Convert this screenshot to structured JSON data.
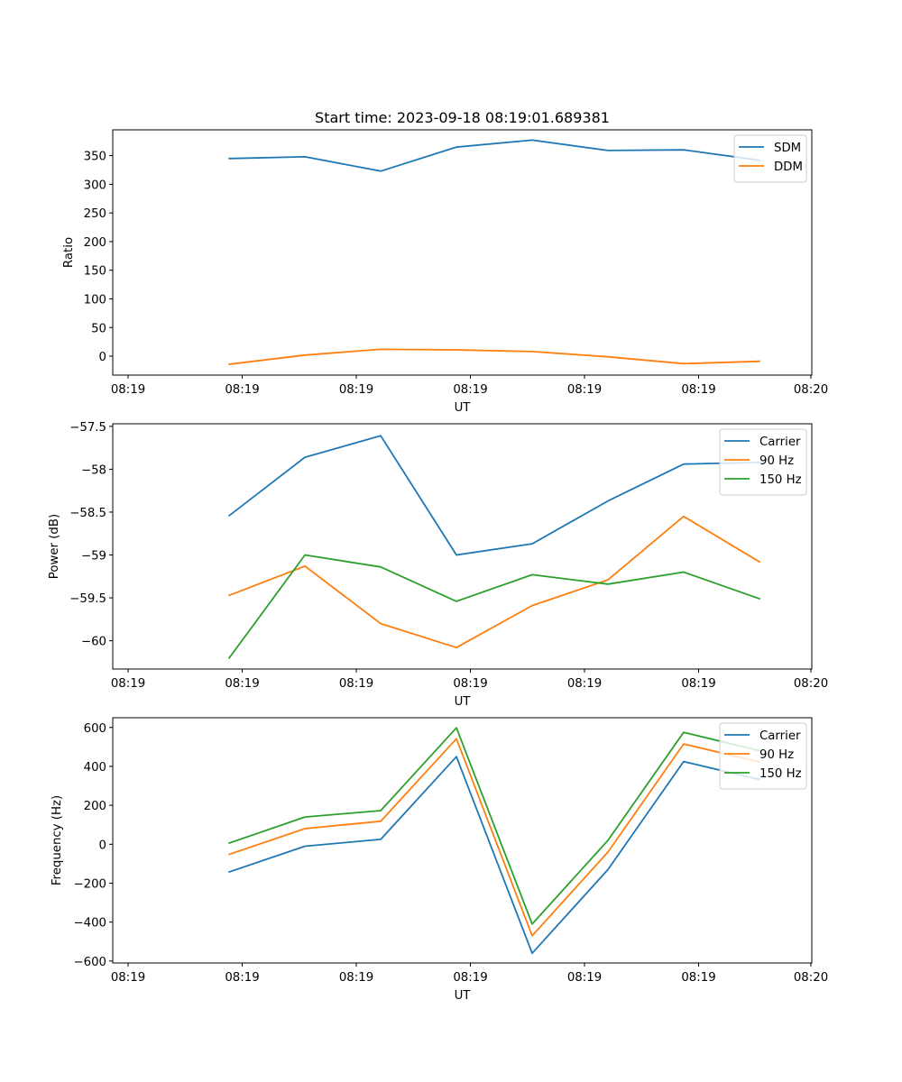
{
  "chart_data": [
    {
      "type": "line",
      "title": "Start time: 2023-09-18 08:19:01.689381",
      "xlabel": "UT",
      "ylabel": "Ratio",
      "xtick_labels": [
        "08:19",
        "08:19",
        "08:19",
        "08:19",
        "08:19",
        "08:19",
        "08:20"
      ],
      "ylim": [
        -33,
        395
      ],
      "yticks": [
        0,
        50,
        100,
        150,
        200,
        250,
        300,
        350
      ],
      "legend_position": "top-right",
      "x": [
        0.5,
        1.15,
        1.8,
        2.45,
        3.1,
        3.75,
        4.4,
        5.05
      ],
      "xlim": [
        -0.5,
        5.5
      ],
      "series": [
        {
          "name": "SDM",
          "color": "#1f77b4",
          "values": [
            345,
            348,
            323,
            365,
            377,
            359,
            360,
            342
          ]
        },
        {
          "name": "DDM",
          "color": "#ff7f0e",
          "values": [
            -14,
            2,
            12,
            11,
            8,
            -1,
            -13,
            -9
          ]
        }
      ]
    },
    {
      "type": "line",
      "title": "",
      "xlabel": "UT",
      "ylabel": "Power (dB)",
      "xtick_labels": [
        "08:19",
        "08:19",
        "08:19",
        "08:19",
        "08:19",
        "08:19",
        "08:20"
      ],
      "ylim": [
        -60.33,
        -57.47
      ],
      "yticks": [
        -60.0,
        -59.5,
        -59.0,
        -58.5,
        -58.0,
        -57.5
      ],
      "legend_position": "top-right",
      "x": [
        0.5,
        1.15,
        1.8,
        2.45,
        3.1,
        3.75,
        4.4,
        5.05
      ],
      "xlim": [
        -0.5,
        5.5
      ],
      "series": [
        {
          "name": "Carrier",
          "color": "#1f77b4",
          "values": [
            -58.54,
            -57.86,
            -57.61,
            -59.0,
            -58.87,
            -58.37,
            -57.94,
            -57.92
          ]
        },
        {
          "name": "90 Hz",
          "color": "#ff7f0e",
          "values": [
            -59.47,
            -59.13,
            -59.8,
            -60.08,
            -59.59,
            -59.29,
            -58.55,
            -59.08
          ]
        },
        {
          "name": "150 Hz",
          "color": "#2ca02c",
          "values": [
            -60.2,
            -59.0,
            -59.14,
            -59.54,
            -59.23,
            -59.34,
            -59.2,
            -59.51
          ]
        }
      ]
    },
    {
      "type": "line",
      "title": "",
      "xlabel": "UT",
      "ylabel": "Frequency (Hz)",
      "xtick_labels": [
        "08:19",
        "08:19",
        "08:19",
        "08:19",
        "08:19",
        "08:19",
        "08:20"
      ],
      "ylim": [
        -610,
        650
      ],
      "yticks": [
        -600,
        -400,
        -200,
        0,
        200,
        400,
        600
      ],
      "legend_position": "top-right",
      "x": [
        0.5,
        1.15,
        1.8,
        2.45,
        3.1,
        3.75,
        4.4,
        5.05
      ],
      "xlim": [
        -0.5,
        5.5
      ],
      "series": [
        {
          "name": "Carrier",
          "color": "#1f77b4",
          "values": [
            -142,
            -10,
            25,
            450,
            -560,
            -130,
            425,
            333
          ]
        },
        {
          "name": "90 Hz",
          "color": "#ff7f0e",
          "values": [
            -52,
            80,
            118,
            542,
            -470,
            -40,
            515,
            423
          ]
        },
        {
          "name": "150 Hz",
          "color": "#2ca02c",
          "values": [
            6,
            140,
            173,
            598,
            -410,
            20,
            575,
            481
          ]
        }
      ]
    }
  ]
}
